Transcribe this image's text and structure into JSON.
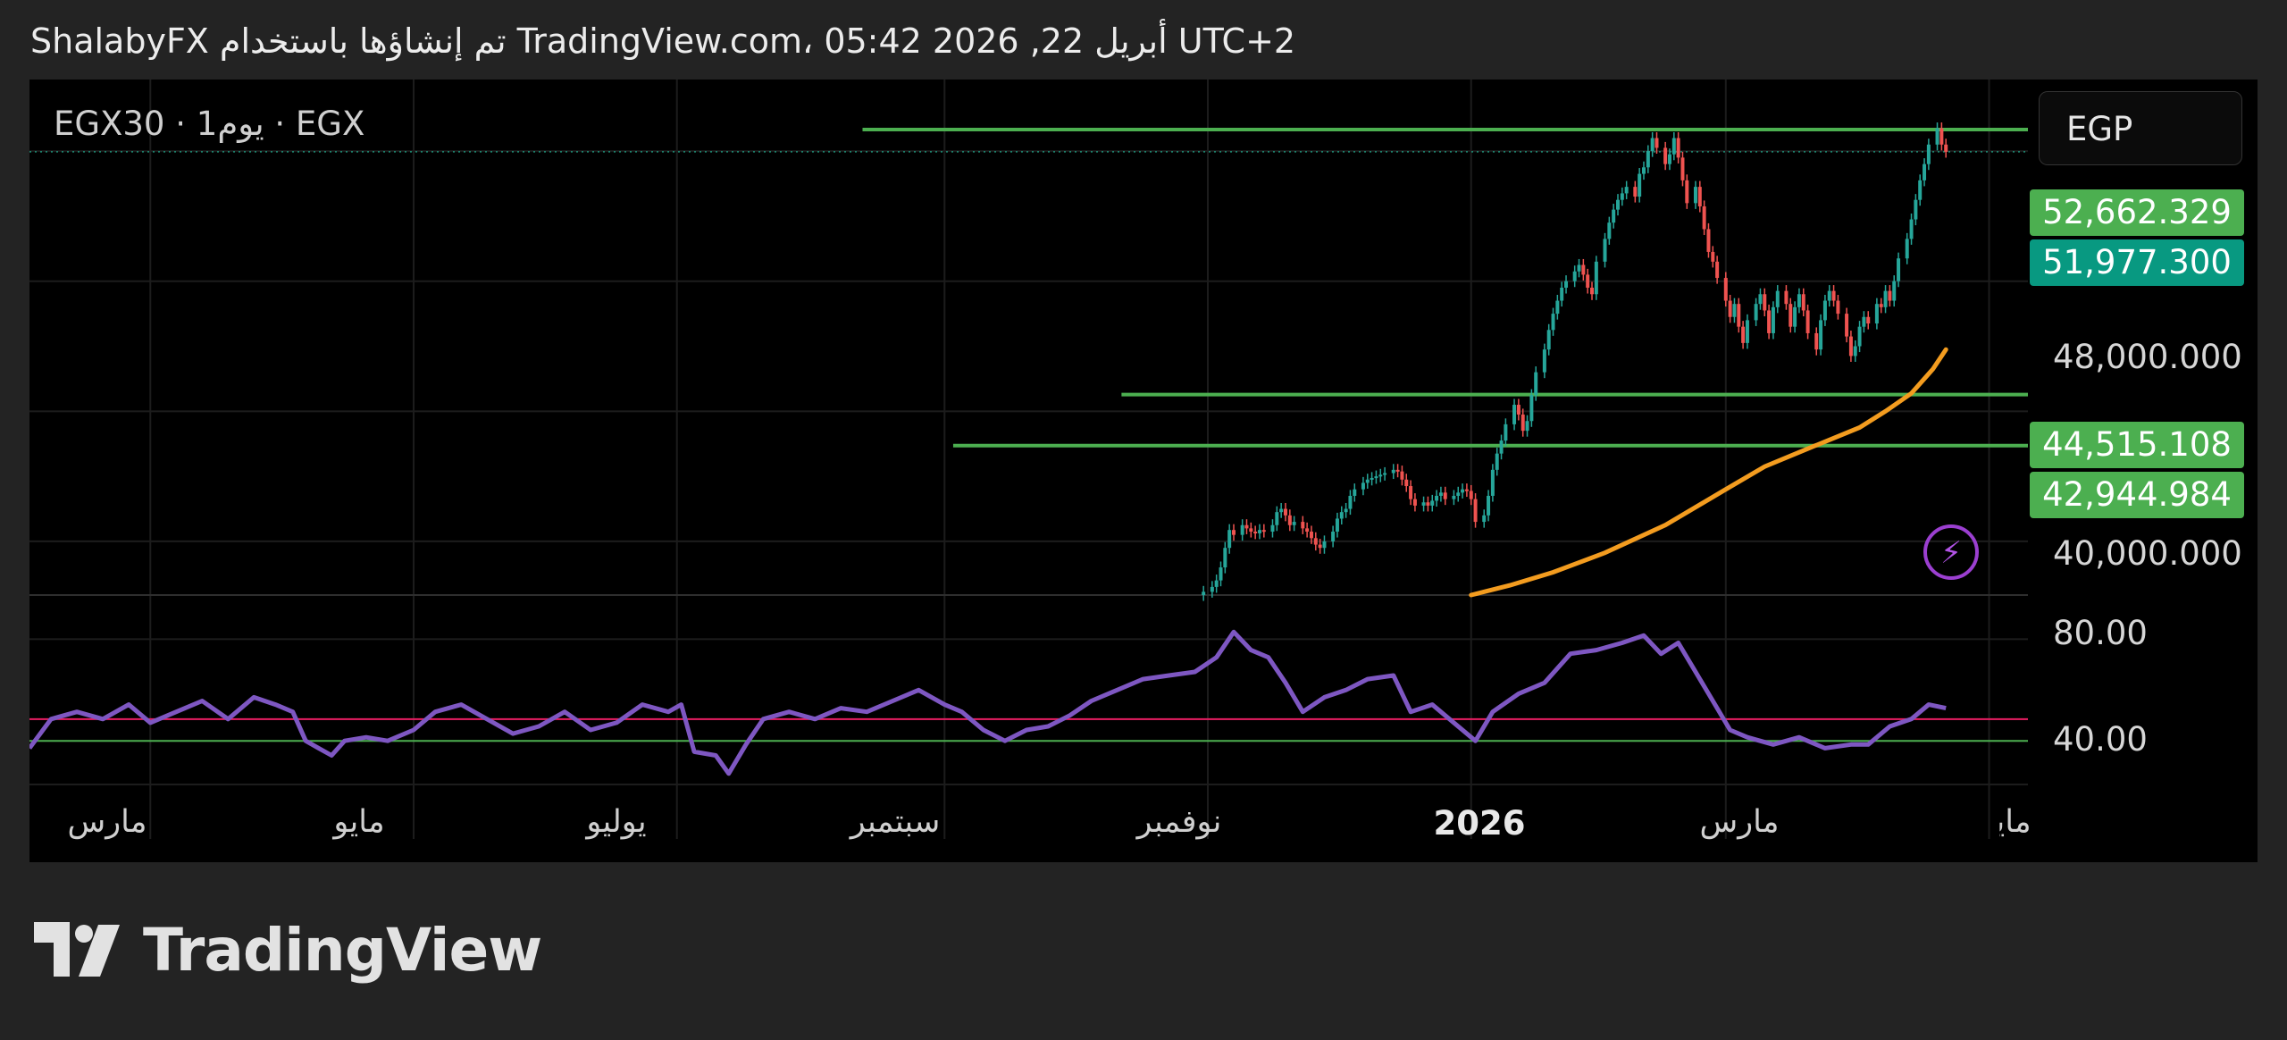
{
  "header": {
    "text": "ShalabyFX تم إنشاؤها باستخدام TradingView.com، 05:42 2026 ,22 أبريل UTC+2"
  },
  "symbol_info": "EGX30 · 1يوم · EGX",
  "currency": "EGP",
  "brand": {
    "name": "TradingView"
  },
  "colors": {
    "background": "#000000",
    "frame": "#232323",
    "up_candle": "#26a69a",
    "down_candle": "#ef5350",
    "ma": "#f39c1f",
    "rsi": "#7e57c2",
    "level": "#4caf50",
    "rsi_upper": "#e91e63",
    "rsi_lower": "#4caf50"
  },
  "chart_data": [
    {
      "type": "candlestick",
      "price_axis": {
        "ticks": [
          "48,000.000",
          "40,000.000"
        ],
        "labels": [
          {
            "text": "52,662.329",
            "value": 52662.329,
            "color": "#4caf50"
          },
          {
            "text": "51,977.300",
            "value": 51977.3,
            "color": "#089981"
          },
          {
            "text": "44,515.108",
            "value": 44515.108,
            "color": "#4caf50"
          },
          {
            "text": "42,944.984",
            "value": 42944.984,
            "color": "#4caf50"
          }
        ],
        "range": [
          38350,
          54200
        ]
      },
      "x_axis": {
        "ticks": [
          "مارس",
          "مايو",
          "يوليو",
          "سبتمبر",
          "نوفمبر",
          "2026",
          "مارس",
          "مايو"
        ],
        "range": [
          "2025-02-01",
          "2026-05-10"
        ]
      },
      "levels": [
        {
          "value": 52662.329,
          "from": "2025-08-13"
        },
        {
          "value": 44515.108,
          "from": "2025-10-12"
        },
        {
          "value": 42944.984,
          "from": "2025-09-03"
        }
      ],
      "last_price": 51977.3,
      "candles": [
        [
          "2025-10-31",
          38450
        ],
        [
          "2025-11-02",
          38600
        ],
        [
          "2025-11-03",
          38800
        ],
        [
          "2025-11-04",
          39200
        ],
        [
          "2025-11-05",
          39800
        ],
        [
          "2025-11-06",
          40350
        ],
        [
          "2025-11-07",
          40200
        ],
        [
          "2025-11-09",
          40500
        ],
        [
          "2025-11-10",
          40400
        ],
        [
          "2025-11-11",
          40300
        ],
        [
          "2025-11-12",
          40250
        ],
        [
          "2025-11-13",
          40350
        ],
        [
          "2025-11-14",
          40300
        ],
        [
          "2025-11-16",
          40500
        ],
        [
          "2025-11-17",
          40900
        ],
        [
          "2025-11-18",
          41000
        ],
        [
          "2025-11-19",
          40800
        ],
        [
          "2025-11-20",
          40500
        ],
        [
          "2025-11-21",
          40600
        ],
        [
          "2025-11-23",
          40400
        ],
        [
          "2025-11-24",
          40300
        ],
        [
          "2025-11-25",
          40100
        ],
        [
          "2025-11-26",
          39900
        ],
        [
          "2025-11-27",
          39800
        ],
        [
          "2025-11-28",
          40000
        ],
        [
          "2025-11-30",
          40300
        ],
        [
          "2025-12-01",
          40700
        ],
        [
          "2025-12-02",
          40900
        ],
        [
          "2025-12-03",
          41000
        ],
        [
          "2025-12-04",
          41400
        ],
        [
          "2025-12-05",
          41600
        ],
        [
          "2025-12-07",
          41800
        ],
        [
          "2025-12-08",
          41900
        ],
        [
          "2025-12-09",
          41950
        ],
        [
          "2025-12-10",
          42000
        ],
        [
          "2025-12-11",
          42050
        ],
        [
          "2025-12-12",
          42100
        ],
        [
          "2025-12-14",
          42200
        ],
        [
          "2025-12-15",
          42150
        ],
        [
          "2025-12-16",
          41900
        ],
        [
          "2025-12-17",
          41700
        ],
        [
          "2025-12-18",
          41300
        ],
        [
          "2025-12-19",
          41100
        ],
        [
          "2025-12-21",
          41200
        ],
        [
          "2025-12-22",
          41100
        ],
        [
          "2025-12-23",
          41250
        ],
        [
          "2025-12-24",
          41400
        ],
        [
          "2025-12-25",
          41500
        ],
        [
          "2025-12-26",
          41300
        ],
        [
          "2025-12-28",
          41400
        ],
        [
          "2025-12-29",
          41500
        ],
        [
          "2025-12-30",
          41600
        ],
        [
          "2025-12-31",
          41550
        ],
        [
          "2026-01-01",
          41300
        ],
        [
          "2026-01-02",
          40600
        ],
        [
          "2026-01-04",
          40800
        ],
        [
          "2026-01-05",
          41400
        ],
        [
          "2026-01-06",
          42200
        ],
        [
          "2026-01-07",
          42700
        ],
        [
          "2026-01-08",
          43100
        ],
        [
          "2026-01-09",
          43600
        ],
        [
          "2026-01-11",
          44200
        ],
        [
          "2026-01-12",
          43900
        ],
        [
          "2026-01-13",
          43400
        ],
        [
          "2026-01-14",
          43700
        ],
        [
          "2026-01-15",
          44500
        ],
        [
          "2026-01-16",
          45200
        ],
        [
          "2026-01-18",
          45900
        ],
        [
          "2026-01-19",
          46500
        ],
        [
          "2026-01-20",
          47000
        ],
        [
          "2026-01-21",
          47400
        ],
        [
          "2026-01-22",
          47800
        ],
        [
          "2026-01-23",
          48000
        ],
        [
          "2026-01-25",
          48300
        ],
        [
          "2026-01-26",
          48500
        ],
        [
          "2026-01-27",
          48200
        ],
        [
          "2026-01-28",
          47800
        ],
        [
          "2026-01-29",
          47600
        ],
        [
          "2026-01-30",
          48600
        ],
        [
          "2026-02-01",
          49300
        ],
        [
          "2026-02-02",
          49800
        ],
        [
          "2026-02-03",
          50200
        ],
        [
          "2026-02-04",
          50500
        ],
        [
          "2026-02-05",
          50700
        ],
        [
          "2026-02-06",
          50900
        ],
        [
          "2026-02-08",
          50600
        ],
        [
          "2026-02-09",
          51300
        ],
        [
          "2026-02-10",
          51500
        ],
        [
          "2026-02-11",
          52000
        ],
        [
          "2026-02-12",
          52400
        ],
        [
          "2026-02-13",
          52100
        ],
        [
          "2026-02-15",
          51600
        ],
        [
          "2026-02-16",
          51900
        ],
        [
          "2026-02-17",
          52400
        ],
        [
          "2026-02-18",
          51800
        ],
        [
          "2026-02-19",
          51100
        ],
        [
          "2026-02-20",
          50400
        ],
        [
          "2026-02-22",
          50900
        ],
        [
          "2026-02-23",
          50300
        ],
        [
          "2026-02-24",
          49600
        ],
        [
          "2026-02-25",
          48900
        ],
        [
          "2026-02-26",
          48600
        ],
        [
          "2026-02-27",
          48100
        ],
        [
          "2026-03-01",
          47400
        ],
        [
          "2026-03-02",
          46900
        ],
        [
          "2026-03-03",
          47300
        ],
        [
          "2026-03-04",
          46600
        ],
        [
          "2026-03-05",
          46100
        ],
        [
          "2026-03-06",
          46800
        ],
        [
          "2026-03-08",
          47300
        ],
        [
          "2026-03-09",
          47600
        ],
        [
          "2026-03-10",
          47100
        ],
        [
          "2026-03-11",
          46400
        ],
        [
          "2026-03-12",
          47200
        ],
        [
          "2026-03-13",
          47700
        ],
        [
          "2026-03-15",
          47300
        ],
        [
          "2026-03-16",
          46600
        ],
        [
          "2026-03-17",
          47200
        ],
        [
          "2026-03-18",
          47600
        ],
        [
          "2026-03-19",
          47100
        ],
        [
          "2026-03-20",
          46400
        ],
        [
          "2026-03-22",
          45900
        ],
        [
          "2026-03-23",
          46800
        ],
        [
          "2026-03-24",
          47400
        ],
        [
          "2026-03-25",
          47700
        ],
        [
          "2026-03-26",
          47400
        ],
        [
          "2026-03-27",
          47000
        ],
        [
          "2026-03-29",
          46300
        ],
        [
          "2026-03-30",
          45700
        ],
        [
          "2026-03-31",
          46000
        ],
        [
          "2026-04-01",
          46600
        ],
        [
          "2026-04-02",
          46900
        ],
        [
          "2026-04-03",
          46700
        ],
        [
          "2026-04-05",
          47300
        ],
        [
          "2026-04-06",
          47200
        ],
        [
          "2026-04-07",
          47700
        ],
        [
          "2026-04-08",
          47400
        ],
        [
          "2026-04-09",
          48000
        ],
        [
          "2026-04-10",
          48700
        ],
        [
          "2026-04-12",
          49300
        ],
        [
          "2026-04-13",
          49900
        ],
        [
          "2026-04-14",
          50500
        ],
        [
          "2026-04-15",
          51100
        ],
        [
          "2026-04-16",
          51600
        ],
        [
          "2026-04-17",
          52200
        ],
        [
          "2026-04-19",
          52700
        ],
        [
          "2026-04-20",
          52200
        ],
        [
          "2026-04-21",
          51977.3
        ]
      ],
      "moving_average": [
        [
          "2026-01-01",
          38350
        ],
        [
          "2026-01-10",
          38650
        ],
        [
          "2026-01-20",
          39050
        ],
        [
          "2026-02-01",
          39650
        ],
        [
          "2026-02-15",
          40500
        ],
        [
          "2026-03-01",
          41600
        ],
        [
          "2026-03-10",
          42300
        ],
        [
          "2026-03-20",
          42850
        ],
        [
          "2026-04-01",
          43500
        ],
        [
          "2026-04-07",
          44000
        ],
        [
          "2026-04-13",
          44550
        ],
        [
          "2026-04-18",
          45300
        ],
        [
          "2026-04-21",
          45900
        ]
      ]
    },
    {
      "type": "line",
      "name": "RSI",
      "y_ticks": [
        "80.00",
        "40.00"
      ],
      "ylim": [
        25,
        86
      ],
      "bands": [
        58,
        52
      ],
      "points": [
        [
          "2025-02-01",
          50
        ],
        [
          "2025-02-06",
          58
        ],
        [
          "2025-02-12",
          60
        ],
        [
          "2025-02-18",
          58
        ],
        [
          "2025-02-24",
          62
        ],
        [
          "2025-03-01",
          57
        ],
        [
          "2025-03-07",
          60
        ],
        [
          "2025-03-13",
          63
        ],
        [
          "2025-03-19",
          58
        ],
        [
          "2025-03-25",
          64
        ],
        [
          "2025-03-30",
          62
        ],
        [
          "2025-04-03",
          60
        ],
        [
          "2025-04-06",
          52
        ],
        [
          "2025-04-09",
          50
        ],
        [
          "2025-04-12",
          48
        ],
        [
          "2025-04-15",
          52
        ],
        [
          "2025-04-20",
          53
        ],
        [
          "2025-04-25",
          52
        ],
        [
          "2025-05-01",
          55
        ],
        [
          "2025-05-06",
          60
        ],
        [
          "2025-05-12",
          62
        ],
        [
          "2025-05-18",
          58
        ],
        [
          "2025-05-24",
          54
        ],
        [
          "2025-05-30",
          56
        ],
        [
          "2025-06-05",
          60
        ],
        [
          "2025-06-11",
          55
        ],
        [
          "2025-06-17",
          57
        ],
        [
          "2025-06-23",
          62
        ],
        [
          "2025-06-29",
          60
        ],
        [
          "2025-07-02",
          62
        ],
        [
          "2025-07-05",
          49
        ],
        [
          "2025-07-10",
          48
        ],
        [
          "2025-07-13",
          43
        ],
        [
          "2025-07-17",
          51
        ],
        [
          "2025-07-21",
          58
        ],
        [
          "2025-07-27",
          60
        ],
        [
          "2025-08-02",
          58
        ],
        [
          "2025-08-08",
          61
        ],
        [
          "2025-08-14",
          60
        ],
        [
          "2025-08-20",
          63
        ],
        [
          "2025-08-26",
          66
        ],
        [
          "2025-09-01",
          62
        ],
        [
          "2025-09-05",
          60
        ],
        [
          "2025-09-10",
          55
        ],
        [
          "2025-09-15",
          52
        ],
        [
          "2025-09-20",
          55
        ],
        [
          "2025-09-25",
          56
        ],
        [
          "2025-09-30",
          59
        ],
        [
          "2025-10-05",
          63
        ],
        [
          "2025-10-11",
          66
        ],
        [
          "2025-10-17",
          69
        ],
        [
          "2025-10-23",
          70
        ],
        [
          "2025-10-29",
          71
        ],
        [
          "2025-11-03",
          75
        ],
        [
          "2025-11-07",
          82
        ],
        [
          "2025-11-11",
          77
        ],
        [
          "2025-11-15",
          75
        ],
        [
          "2025-11-19",
          68
        ],
        [
          "2025-11-23",
          60
        ],
        [
          "2025-11-28",
          64
        ],
        [
          "2025-12-03",
          66
        ],
        [
          "2025-12-08",
          69
        ],
        [
          "2025-12-14",
          70
        ],
        [
          "2025-12-18",
          60
        ],
        [
          "2025-12-23",
          62
        ],
        [
          "2025-12-28",
          57
        ],
        [
          "2026-01-02",
          52
        ],
        [
          "2026-01-06",
          60
        ],
        [
          "2026-01-12",
          65
        ],
        [
          "2026-01-18",
          68
        ],
        [
          "2026-01-24",
          76
        ],
        [
          "2026-01-30",
          77
        ],
        [
          "2026-02-05",
          79
        ],
        [
          "2026-02-10",
          81
        ],
        [
          "2026-02-14",
          76
        ],
        [
          "2026-02-18",
          79
        ],
        [
          "2026-02-22",
          71
        ],
        [
          "2026-02-26",
          63
        ],
        [
          "2026-03-02",
          55
        ],
        [
          "2026-03-06",
          53
        ],
        [
          "2026-03-12",
          51
        ],
        [
          "2026-03-18",
          53
        ],
        [
          "2026-03-24",
          50
        ],
        [
          "2026-03-30",
          51
        ],
        [
          "2026-04-03",
          51
        ],
        [
          "2026-04-08",
          56
        ],
        [
          "2026-04-13",
          58
        ],
        [
          "2026-04-17",
          62
        ],
        [
          "2026-04-21",
          61
        ]
      ]
    }
  ]
}
